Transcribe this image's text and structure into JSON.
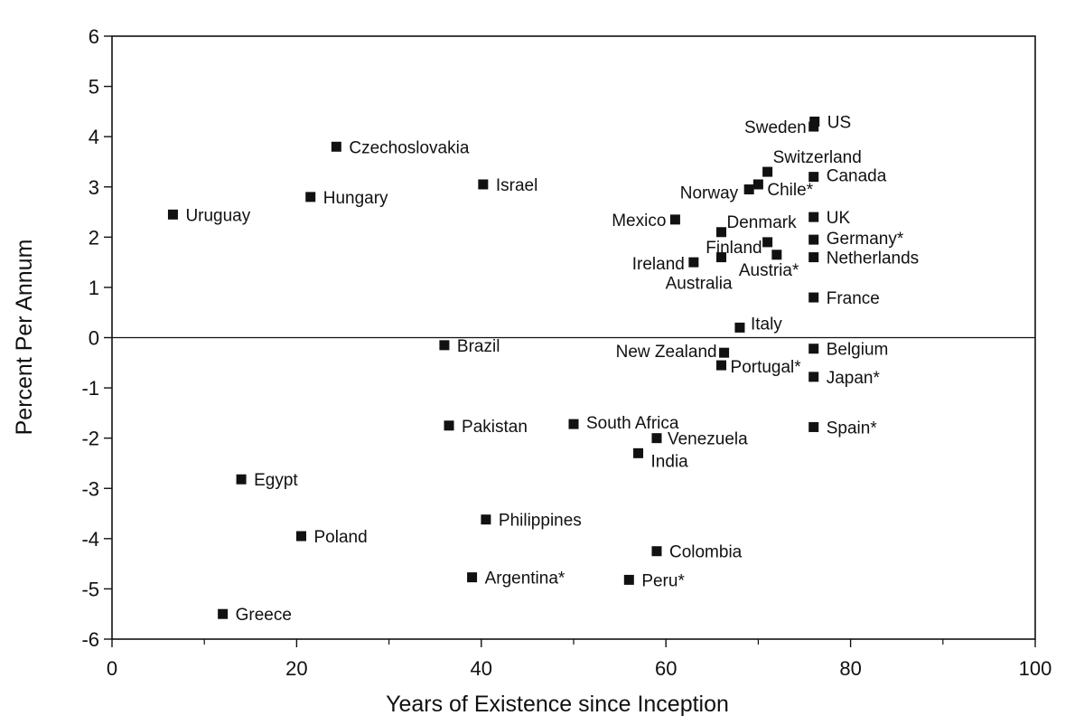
{
  "chart_data": {
    "type": "scatter",
    "title": "",
    "xlabel": "Years of Existence since Inception",
    "ylabel": "Percent Per Annum",
    "xlim": [
      0,
      100
    ],
    "ylim": [
      -6,
      6
    ],
    "xticks": [
      0,
      20,
      40,
      60,
      80,
      100
    ],
    "yticks": [
      6,
      5,
      4,
      3,
      2,
      1,
      0,
      -1,
      -2,
      -3,
      -4,
      -5,
      -6
    ],
    "grid": false,
    "reference_line_y": 0,
    "marker": "square",
    "marker_color": "#111111",
    "points": [
      {
        "label": "US",
        "x": 76.1,
        "y": 4.3
      },
      {
        "label": "Sweden",
        "x": 76.0,
        "y": 4.2
      },
      {
        "label": "Switzerland",
        "x": 71.0,
        "y": 3.3
      },
      {
        "label": "Canada",
        "x": 76.0,
        "y": 3.2
      },
      {
        "label": "Norway",
        "x": 69.0,
        "y": 2.95
      },
      {
        "label": "Chile*",
        "x": 70.0,
        "y": 3.05
      },
      {
        "label": "Czechoslovakia",
        "x": 24.3,
        "y": 3.8
      },
      {
        "label": "Israel",
        "x": 40.2,
        "y": 3.05
      },
      {
        "label": "Hungary",
        "x": 21.5,
        "y": 2.8
      },
      {
        "label": "Uruguay",
        "x": 6.6,
        "y": 2.45
      },
      {
        "label": "Mexico",
        "x": 61.0,
        "y": 2.35
      },
      {
        "label": "UK",
        "x": 76.0,
        "y": 2.4
      },
      {
        "label": "Denmark",
        "x": 66.0,
        "y": 2.1
      },
      {
        "label": "Finland",
        "x": 71.0,
        "y": 1.9
      },
      {
        "label": "Germany*",
        "x": 76.0,
        "y": 1.95
      },
      {
        "label": "Ireland",
        "x": 63.0,
        "y": 1.5
      },
      {
        "label": "Australia",
        "x": 66.0,
        "y": 1.6
      },
      {
        "label": "Austria*",
        "x": 72.0,
        "y": 1.65
      },
      {
        "label": "Netherlands",
        "x": 76.0,
        "y": 1.6
      },
      {
        "label": "France",
        "x": 76.0,
        "y": 0.8
      },
      {
        "label": "Italy",
        "x": 68.0,
        "y": 0.2
      },
      {
        "label": "Brazil",
        "x": 36.0,
        "y": -0.15
      },
      {
        "label": "New Zealand",
        "x": 66.3,
        "y": -0.3
      },
      {
        "label": "Belgium",
        "x": 76.0,
        "y": -0.22
      },
      {
        "label": "Portugal*",
        "x": 66.0,
        "y": -0.55
      },
      {
        "label": "Japan*",
        "x": 76.0,
        "y": -0.78
      },
      {
        "label": "Pakistan",
        "x": 36.5,
        "y": -1.75
      },
      {
        "label": "South Africa",
        "x": 50.0,
        "y": -1.72
      },
      {
        "label": "Spain*",
        "x": 76.0,
        "y": -1.78
      },
      {
        "label": "Venezuela",
        "x": 59.0,
        "y": -2.0
      },
      {
        "label": "India",
        "x": 57.0,
        "y": -2.3
      },
      {
        "label": "Egypt",
        "x": 14.0,
        "y": -2.82
      },
      {
        "label": "Philippines",
        "x": 40.5,
        "y": -3.62
      },
      {
        "label": "Poland",
        "x": 20.5,
        "y": -3.95
      },
      {
        "label": "Colombia",
        "x": 59.0,
        "y": -4.25
      },
      {
        "label": "Argentina*",
        "x": 39.0,
        "y": -4.77
      },
      {
        "label": "Peru*",
        "x": 56.0,
        "y": -4.82
      },
      {
        "label": "Greece",
        "x": 12.0,
        "y": -5.5
      }
    ]
  }
}
